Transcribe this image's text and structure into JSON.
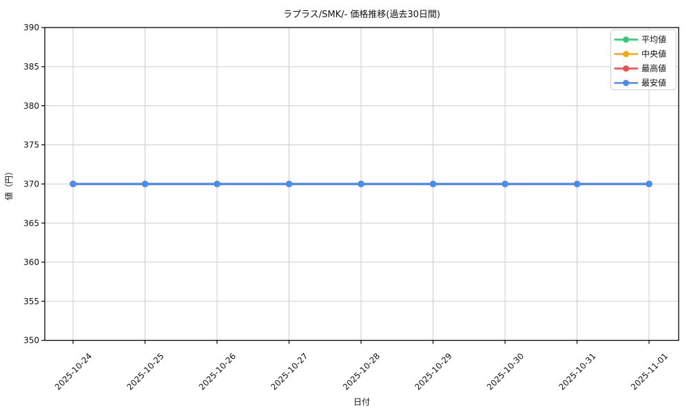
{
  "chart_data": {
    "type": "line",
    "title": "ラプラス/SMK/- 価格推移(過去30日間)",
    "xlabel": "日付",
    "ylabel": "値（円）",
    "x": [
      "2025-10-24",
      "2025-10-25",
      "2025-10-26",
      "2025-10-27",
      "2025-10-28",
      "2025-10-29",
      "2025-10-30",
      "2025-10-31",
      "2025-11-01"
    ],
    "series": [
      {
        "name": "平均値",
        "color": "#2ecc71",
        "values": [
          370,
          370,
          370,
          370,
          370,
          370,
          370,
          370,
          370
        ]
      },
      {
        "name": "中央値",
        "color": "#ffa502",
        "values": [
          370,
          370,
          370,
          370,
          370,
          370,
          370,
          370,
          370
        ]
      },
      {
        "name": "最高値",
        "color": "#f44a4a",
        "values": [
          370,
          370,
          370,
          370,
          370,
          370,
          370,
          370,
          370
        ]
      },
      {
        "name": "最安値",
        "color": "#4a8cf5",
        "values": [
          370,
          370,
          370,
          370,
          370,
          370,
          370,
          370,
          370
        ]
      }
    ],
    "ylim": [
      350,
      390
    ],
    "yticks": [
      350,
      355,
      360,
      365,
      370,
      375,
      380,
      385,
      390
    ],
    "grid": true,
    "legend_position": "upper right",
    "x_tick_rotation": 45
  }
}
